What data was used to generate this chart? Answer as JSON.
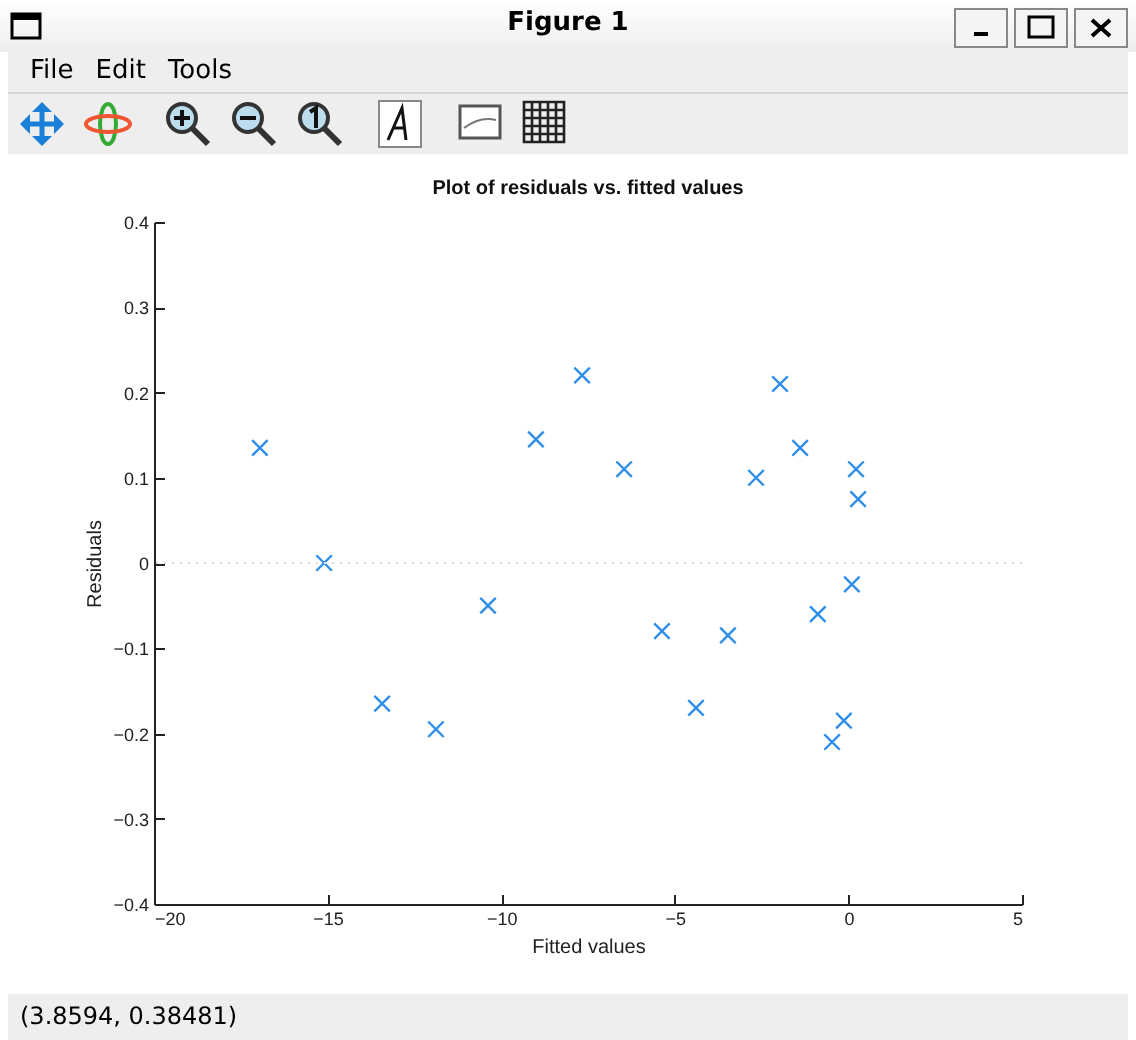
{
  "chart_data": {
    "type": "scatter",
    "title": "Plot of residuals vs. fitted values",
    "xlabel": "Fitted values",
    "ylabel": "Residuals",
    "x": [
      -16.95,
      -15.1,
      -13.43,
      -11.88,
      -10.38,
      -9.0,
      -7.67,
      -6.46,
      -5.37,
      -4.39,
      -3.47,
      -2.66,
      -1.97,
      -1.39,
      -0.88,
      -0.47,
      -0.13,
      0.1,
      0.22,
      0.28
    ],
    "series": [
      {
        "color": "#2f8fe8",
        "values": [
          0.135,
          0.0,
          -0.165,
          -0.195,
          -0.05,
          0.145,
          0.22,
          0.11,
          -0.08,
          -0.17,
          -0.085,
          0.1,
          0.21,
          0.135,
          -0.06,
          -0.21,
          -0.185,
          -0.025,
          0.11,
          0.075
        ]
      }
    ],
    "marker": "cross",
    "xlim": [
      -20,
      5
    ],
    "xticks": [
      -20,
      -15,
      -10,
      -5,
      0,
      5
    ],
    "ylim": [
      -0.4,
      0.4
    ],
    "yticks": [
      -0.4,
      -0.3,
      -0.2,
      -0.1,
      0,
      0.1,
      0.2,
      0.3,
      0.4
    ],
    "ref_lines": [
      {
        "axis": "y",
        "value": 0,
        "color": "#dddddd",
        "line_style": "dotted"
      }
    ],
    "annotations": [
      "Figure 1",
      "File",
      "Edit",
      "Tools",
      "(3.8594, 0.38481)"
    ]
  }
}
